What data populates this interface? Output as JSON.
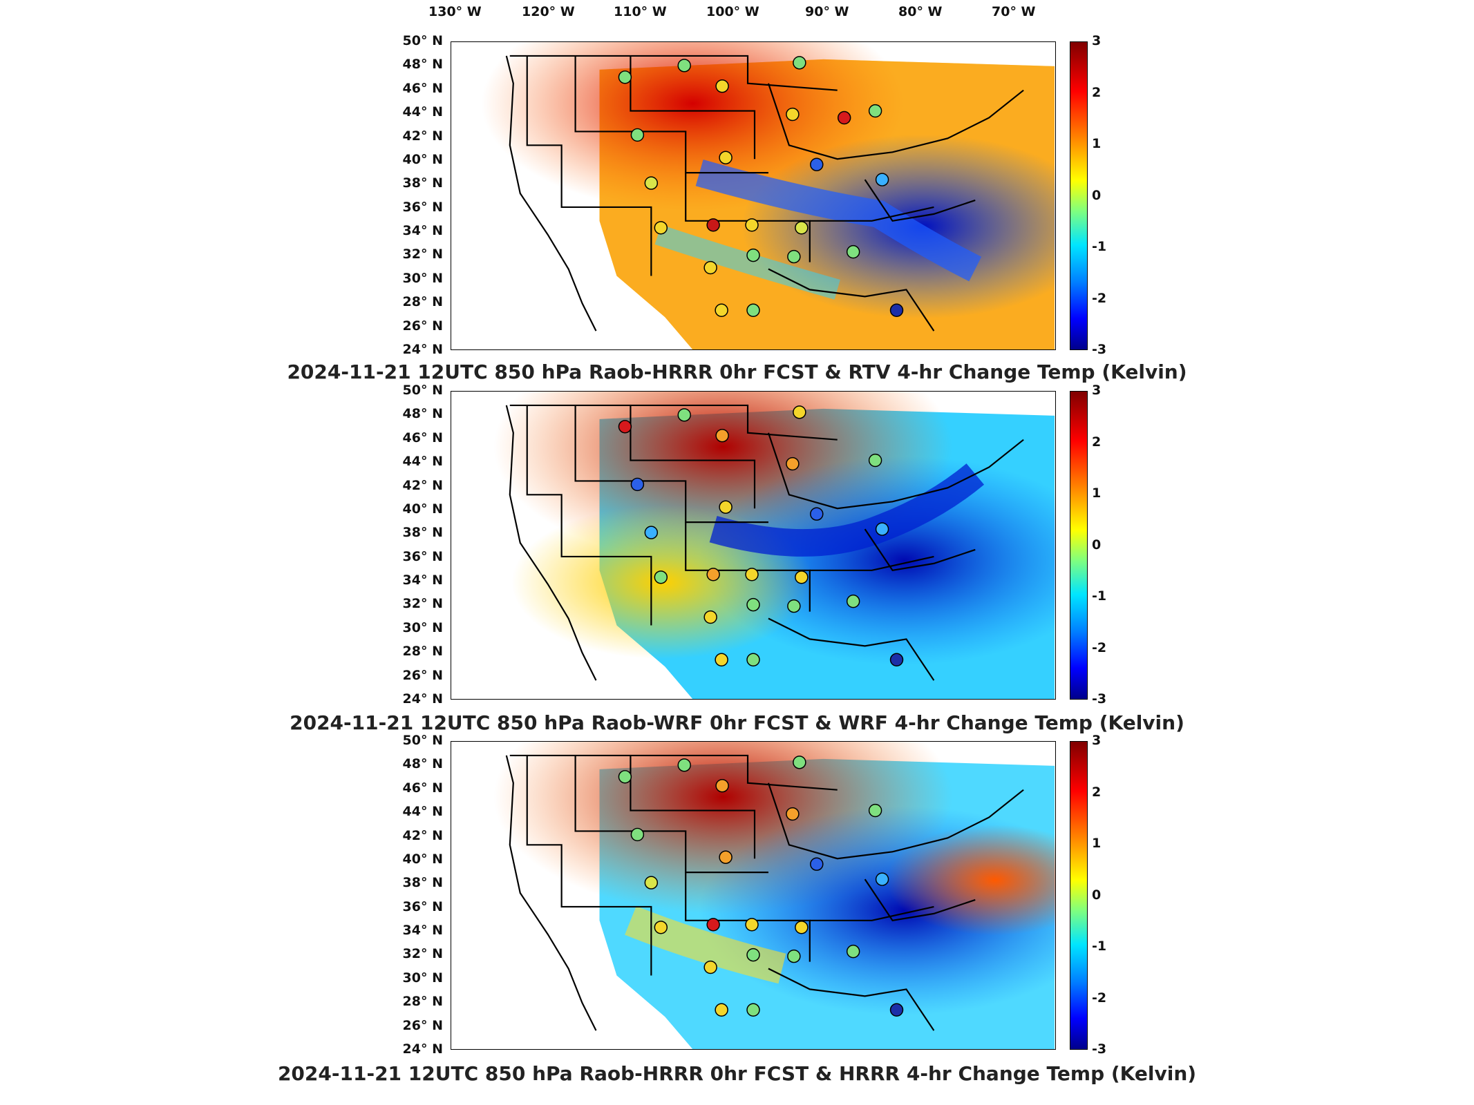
{
  "longitude_labels": [
    "130° W",
    "120° W",
    "110° W",
    "100° W",
    "90° W",
    "80° W",
    "70° W"
  ],
  "latitude_labels": [
    "50° N",
    "48° N",
    "46° N",
    "44° N",
    "42° N",
    "40° N",
    "38° N",
    "36° N",
    "34° N",
    "32° N",
    "30° N",
    "28° N",
    "26° N",
    "24° N"
  ],
  "colorbar_ticks": [
    "3",
    "2",
    "1",
    "0",
    "-1",
    "-2",
    "-3"
  ],
  "colorbar": {
    "min": -3,
    "max": 3,
    "colormap": "jet"
  },
  "panels": [
    {
      "title": "2024-11-21 12UTC 850 hPa Raob-HRRR 0hr FCST & RTV 4-hr Change Temp (Kelvin)"
    },
    {
      "title": "2024-11-21 12UTC 850 hPa Raob-WRF 0hr FCST & WRF 4-hr Change Temp (Kelvin)"
    },
    {
      "title": "2024-11-21 12UTC 850 hPa Raob-HRRR 0hr FCST & HRRR 4-hr Change Temp (Kelvin)"
    }
  ],
  "colors": {
    "warm": "#d7191c",
    "cool": "#2b3fd6",
    "neutral": "#7fe07f"
  }
}
